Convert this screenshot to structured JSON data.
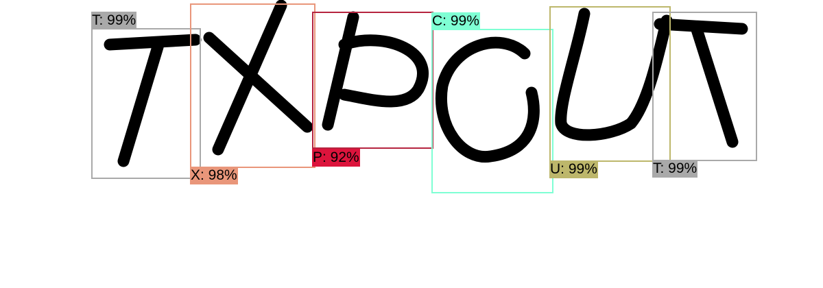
{
  "detections": [
    {
      "char": "T",
      "label": "T: 99%",
      "color": "#a9a9a9",
      "label_bg": "#a9a9a9"
    },
    {
      "char": "X",
      "label": "X: 98%",
      "color": "#e9967a",
      "label_bg": "#e9967a"
    },
    {
      "char": "P",
      "label": "P: 92%",
      "color": "#b5243f",
      "label_bg": "#dc143c"
    },
    {
      "char": "C",
      "label": "C: 99%",
      "color": "#7fffd4",
      "label_bg": "#7fffd4"
    },
    {
      "char": "U",
      "label": "U: 99%",
      "color": "#bdb76b",
      "label_bg": "#bdb76b"
    },
    {
      "char": "T",
      "label": "T: 99%",
      "color": "#a9a9a9",
      "label_bg": "#a9a9a9"
    }
  ]
}
